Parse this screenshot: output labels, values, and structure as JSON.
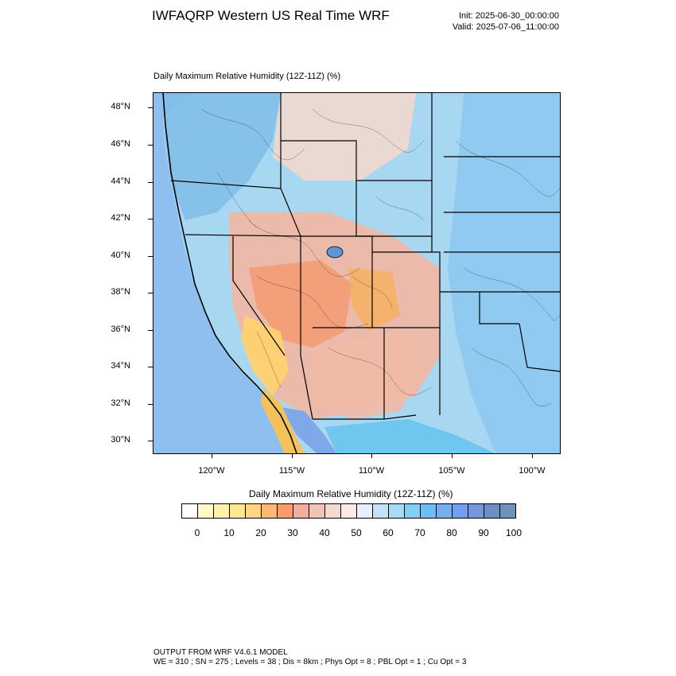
{
  "header": {
    "title": "IWFAQRP Western US Real Time WRF",
    "init": "Init: 2025-06-30_00:00:00",
    "valid": "Valid: 2025-07-06_11:00:00"
  },
  "plot": {
    "title": "Daily Maximum Relative Humidity (12Z-11Z)   (%)"
  },
  "axes": {
    "lat_labels": [
      "48°N",
      "46°N",
      "44°N",
      "42°N",
      "40°N",
      "38°N",
      "36°N",
      "34°N",
      "32°N",
      "30°N"
    ],
    "lon_labels": [
      "120°W",
      "115°W",
      "110°W",
      "105°W",
      "100°W"
    ]
  },
  "colorbar": {
    "title": "Daily Maximum Relative Humidity (12Z-11Z)  (%)",
    "labels": [
      "0",
      "10",
      "20",
      "30",
      "40",
      "50",
      "60",
      "70",
      "80",
      "90",
      "100"
    ],
    "colors": [
      "#ffffff",
      "#fffbc9",
      "#fff3a6",
      "#ffe890",
      "#ffd57e",
      "#ffba6f",
      "#f89c6c",
      "#f2ad9d",
      "#f3c3b5",
      "#f6d9cf",
      "#fbeae6",
      "#eaf0fb",
      "#c6e2f8",
      "#a6dcf4",
      "#7fd0f5",
      "#6cbef3",
      "#76aef0",
      "#6f9ff3",
      "#7796e2",
      "#6d8fc3",
      "#6e92b9"
    ]
  },
  "footer": {
    "line1": "OUTPUT FROM WRF V4.6.1 MODEL",
    "line2": "WE = 310 ; SN = 275 ; Levels = 38 ; Dis = 8km ; Phys Opt = 8 ; PBL Opt = 1 ; Cu Opt = 3"
  }
}
